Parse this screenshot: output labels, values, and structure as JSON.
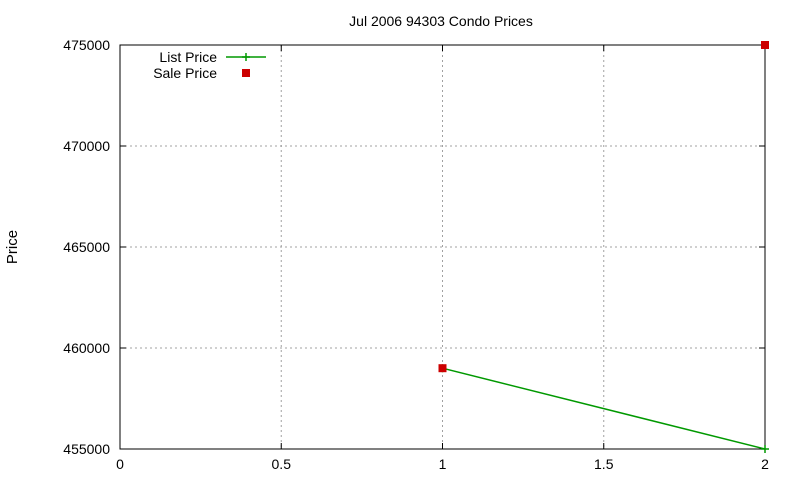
{
  "chart_data": {
    "type": "line",
    "title": "Jul 2006 94303 Condo Prices",
    "xlabel": "",
    "ylabel": "Price",
    "xlim": [
      0,
      2
    ],
    "ylim": [
      455000,
      475000
    ],
    "xticks": [
      0,
      0.5,
      1,
      1.5,
      2
    ],
    "yticks": [
      455000,
      460000,
      465000,
      470000,
      475000
    ],
    "xtick_labels": [
      "0",
      "0.5",
      "1",
      "1.5",
      "2"
    ],
    "ytick_labels": [
      "455000",
      "460000",
      "465000",
      "470000",
      "475000"
    ],
    "grid": true,
    "legend_position": "top-left",
    "series": [
      {
        "name": "List Price",
        "style": "line",
        "color": "#009900",
        "marker": "plus",
        "points": [
          {
            "x": 1,
            "y": 459000
          },
          {
            "x": 2,
            "y": 455000
          }
        ]
      },
      {
        "name": "Sale Price",
        "style": "points",
        "color": "#cc0000",
        "marker": "square",
        "points": [
          {
            "x": 1,
            "y": 459000
          },
          {
            "x": 2,
            "y": 475000
          }
        ]
      }
    ]
  }
}
